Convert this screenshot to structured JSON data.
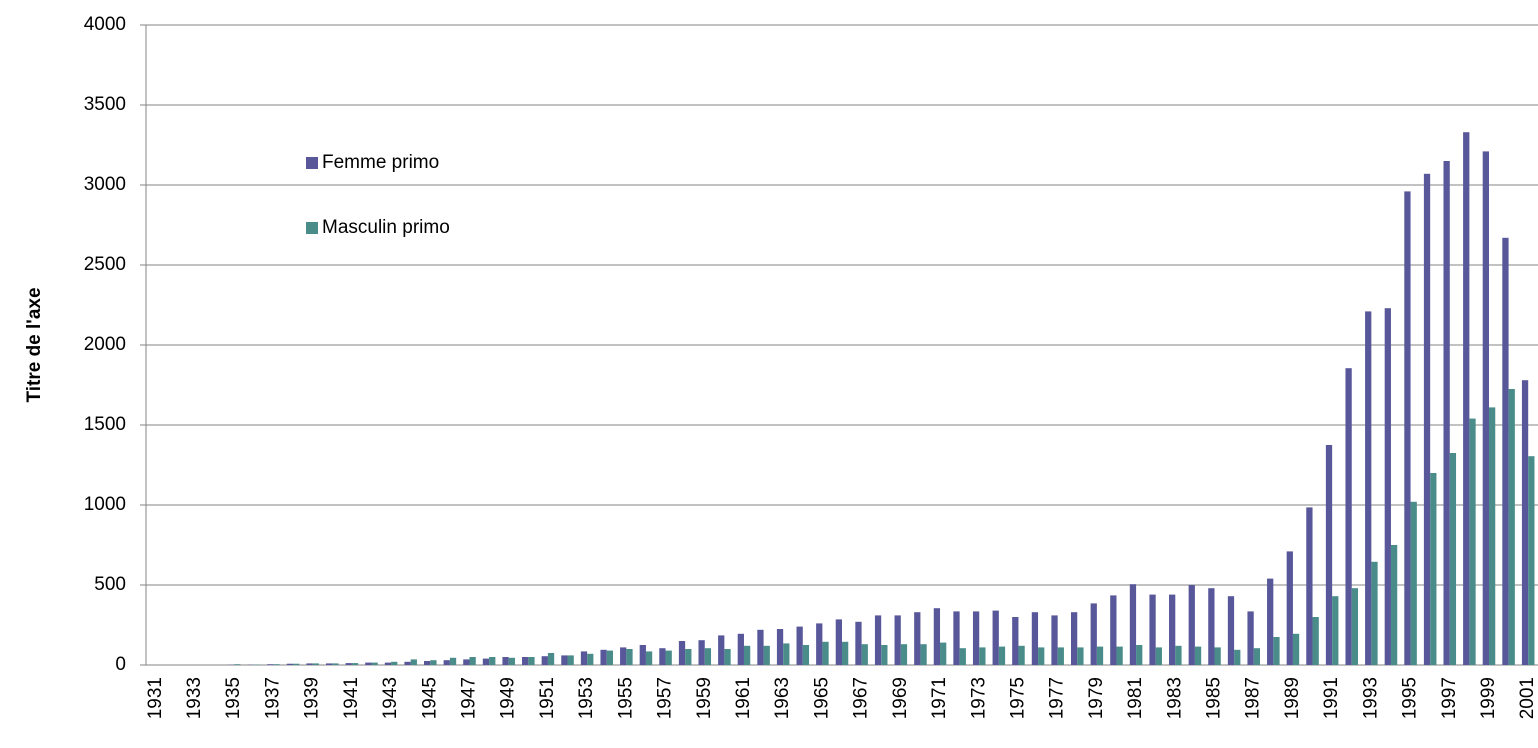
{
  "chart_data": {
    "type": "bar",
    "y_label": "Titre de l'axe",
    "categories": [
      "1931",
      null,
      "1933",
      null,
      "1935",
      null,
      "1937",
      null,
      "1939",
      null,
      "1941",
      null,
      "1943",
      null,
      "1945",
      null,
      "1947",
      null,
      "1949",
      null,
      "1951",
      null,
      "1953",
      null,
      "1955",
      null,
      "1957",
      null,
      "1959",
      null,
      "1961",
      null,
      "1963",
      null,
      "1965",
      null,
      "1967",
      null,
      "1969",
      null,
      "1971",
      null,
      "1973",
      null,
      "1975",
      null,
      "1977",
      null,
      "1979",
      null,
      "1981",
      null,
      "1983",
      null,
      "1985",
      null,
      "1987",
      null,
      "1989",
      null,
      "1991",
      null,
      "1993",
      null,
      "1995",
      null,
      "1997",
      null,
      "1999",
      null,
      "2001"
    ],
    "series": [
      {
        "name": "Femme primo",
        "color": "#57579a",
        "values": [
          0,
          0,
          0,
          0,
          2,
          2,
          5,
          8,
          10,
          10,
          12,
          15,
          15,
          20,
          25,
          30,
          35,
          40,
          50,
          50,
          55,
          60,
          85,
          95,
          110,
          125,
          105,
          150,
          155,
          185,
          195,
          220,
          225,
          240,
          260,
          285,
          270,
          310,
          310,
          330,
          355,
          335,
          335,
          340,
          300,
          330,
          310,
          330,
          385,
          435,
          505,
          440,
          440,
          500,
          480,
          430,
          335,
          540,
          710,
          985,
          1375,
          1855,
          2210,
          2230,
          2960,
          3070,
          3150,
          3330,
          3210,
          2670,
          1780
        ]
      },
      {
        "name": "Masculin primo",
        "color": "#4a8c8a",
        "values": [
          0,
          0,
          0,
          0,
          5,
          3,
          5,
          8,
          10,
          10,
          12,
          15,
          20,
          35,
          30,
          45,
          50,
          50,
          45,
          50,
          75,
          60,
          70,
          90,
          100,
          85,
          90,
          100,
          105,
          100,
          120,
          120,
          135,
          125,
          145,
          145,
          130,
          125,
          130,
          130,
          140,
          105,
          110,
          115,
          120,
          110,
          110,
          110,
          115,
          115,
          125,
          110,
          120,
          115,
          110,
          95,
          105,
          175,
          195,
          300,
          430,
          480,
          645,
          750,
          1020,
          1200,
          1325,
          1540,
          1610,
          1725,
          1305
        ]
      }
    ],
    "ylim": [
      0,
      4000
    ],
    "yticks": [
      0,
      500,
      1000,
      1500,
      2000,
      2500,
      3000,
      3500,
      4000
    ],
    "grid": true
  }
}
